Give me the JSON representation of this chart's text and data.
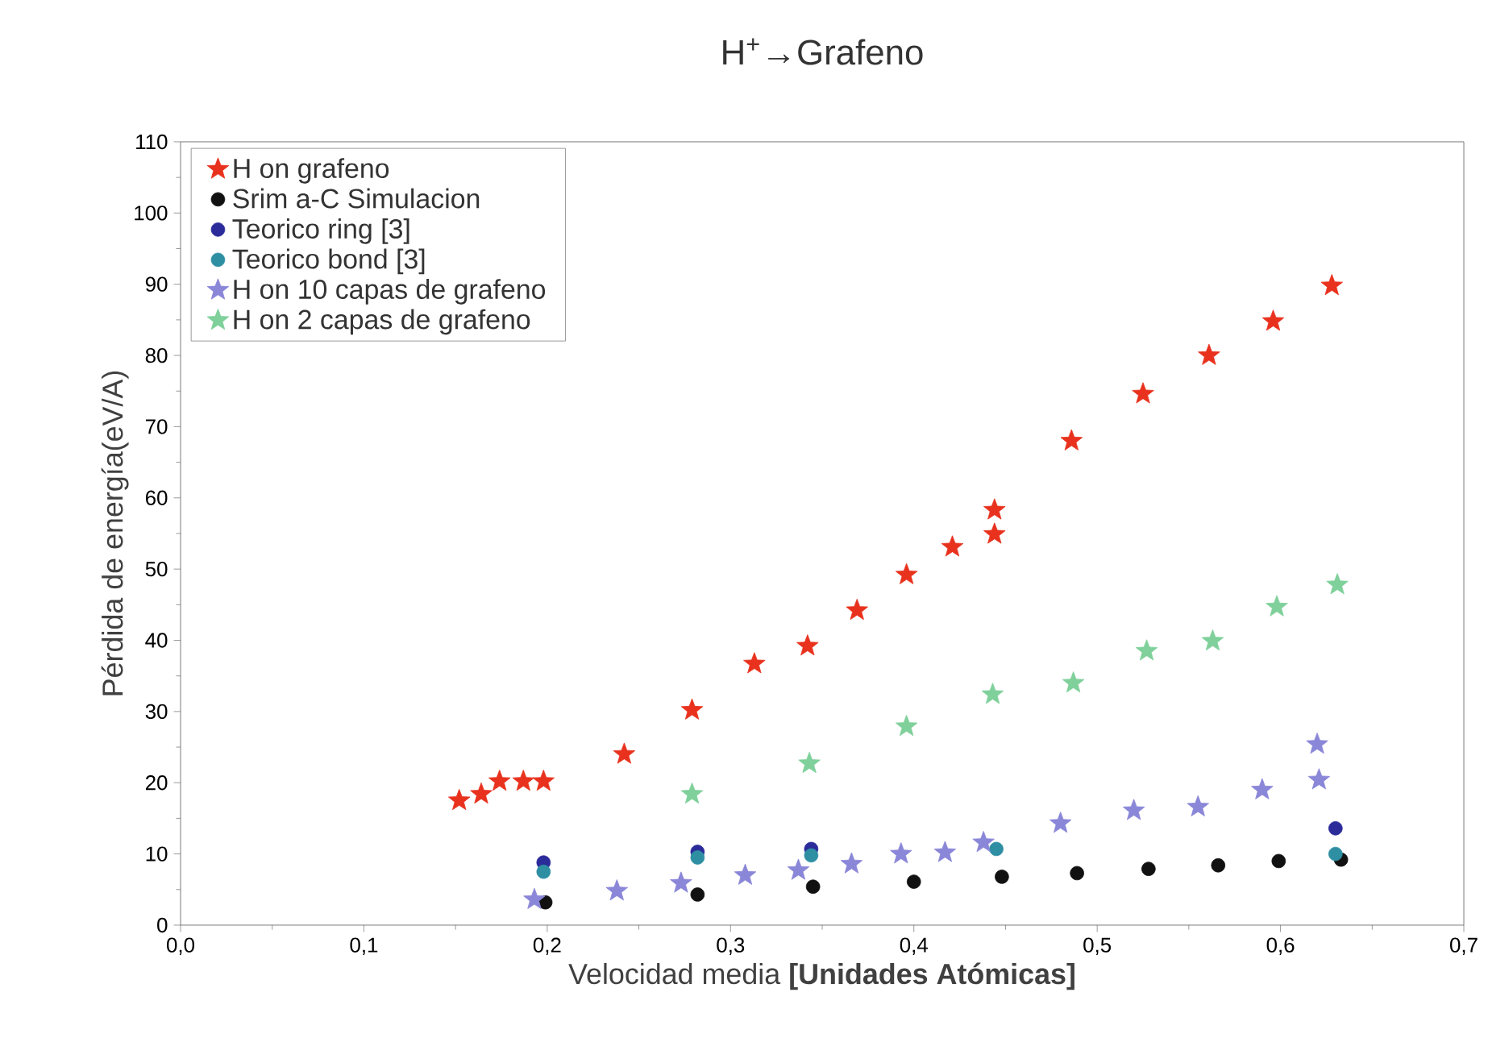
{
  "chart_data": {
    "type": "scatter",
    "title": "H$^{+}$→Grafeno",
    "xlabel": "Velocidad media **[Unidades Atómicas]**",
    "ylabel": "Pérdida de energía(eV/A)",
    "xlim": [
      0,
      0.7
    ],
    "ylim": [
      0,
      110
    ],
    "xticks": [
      {
        "value": 0,
        "label": "0,0"
      },
      {
        "value": 0.1,
        "label": "0,1"
      },
      {
        "value": 0.2,
        "label": "0,2"
      },
      {
        "value": 0.3,
        "label": "0,3"
      },
      {
        "value": 0.4,
        "label": "0,4"
      },
      {
        "value": 0.5,
        "label": "0,5"
      },
      {
        "value": 0.6,
        "label": "0,6"
      },
      {
        "value": 0.7,
        "label": "0,7"
      }
    ],
    "yticks": [
      0,
      10,
      20,
      30,
      40,
      50,
      60,
      70,
      80,
      90,
      100,
      110
    ],
    "legend": "top left",
    "grid": false,
    "series": [
      {
        "name": "H on grafeno",
        "color": "#e8321e",
        "marker": "star",
        "x": [
          0.152,
          0.164,
          0.174,
          0.187,
          0.198,
          0.242,
          0.279,
          0.313,
          0.342,
          0.369,
          0.396,
          0.421,
          0.444,
          0.444,
          0.486,
          0.525,
          0.561,
          0.596,
          0.628
        ],
        "values": [
          17.5,
          18.4,
          20.2,
          20.2,
          20.2,
          24.0,
          30.2,
          36.7,
          39.2,
          44.2,
          49.2,
          53.1,
          54.9,
          58.3,
          68.0,
          74.6,
          80.0,
          84.8,
          89.8
        ]
      },
      {
        "name": "Srim a-C Simulacion",
        "color": "#111111",
        "marker": "circle",
        "x": [
          0.199,
          0.282,
          0.345,
          0.4,
          0.448,
          0.489,
          0.528,
          0.566,
          0.599,
          0.633
        ],
        "values": [
          3.2,
          4.3,
          5.4,
          6.1,
          6.8,
          7.3,
          7.9,
          8.4,
          9.0,
          9.2
        ]
      },
      {
        "name": "Teorico ring [3]",
        "color": "#2b2b9a",
        "marker": "circle",
        "x": [
          0.198,
          0.282,
          0.344,
          0.63
        ],
        "values": [
          8.8,
          10.3,
          10.7,
          13.6
        ]
      },
      {
        "name": "Teorico bond [3]",
        "color": "#2e8fa3",
        "marker": "circle",
        "x": [
          0.198,
          0.282,
          0.344,
          0.445,
          0.63
        ],
        "values": [
          7.5,
          9.5,
          9.8,
          10.7,
          10.0
        ]
      },
      {
        "name": "H on 10 capas de grafeno",
        "color": "#8a86d8",
        "marker": "star",
        "x": [
          0.193,
          0.238,
          0.273,
          0.308,
          0.337,
          0.366,
          0.393,
          0.417,
          0.438,
          0.48,
          0.52,
          0.555,
          0.59,
          0.621,
          0.62
        ],
        "values": [
          3.6,
          4.8,
          5.9,
          7.0,
          7.7,
          8.6,
          10.0,
          10.2,
          11.6,
          14.3,
          16.1,
          16.6,
          19.0,
          20.4,
          25.4
        ]
      },
      {
        "name": "H on 2 capas de grafeno",
        "color": "#7fd09a",
        "marker": "star",
        "x": [
          0.279,
          0.343,
          0.396,
          0.443,
          0.487,
          0.527,
          0.563,
          0.598,
          0.631
        ],
        "values": [
          18.4,
          22.7,
          27.9,
          32.4,
          34.0,
          38.5,
          39.9,
          44.7,
          47.8
        ]
      }
    ]
  }
}
